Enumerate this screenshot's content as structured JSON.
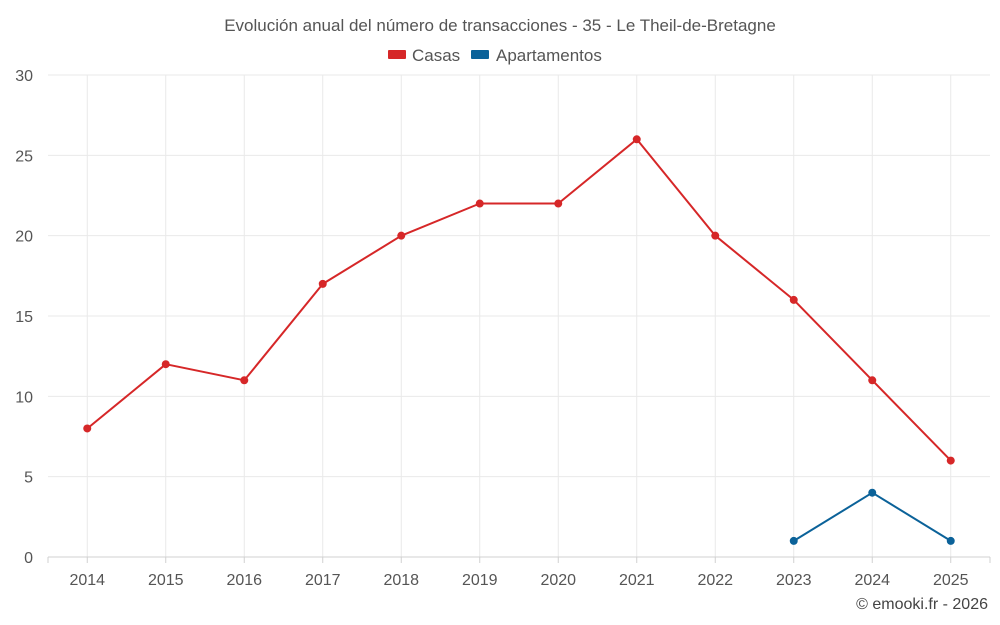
{
  "chart_data": {
    "type": "line",
    "title": "Evolución anual del número de transacciones - 35 - Le Theil-de-Bretagne",
    "xlabel": "",
    "ylabel": "",
    "categories": [
      "2014",
      "2015",
      "2016",
      "2017",
      "2018",
      "2019",
      "2020",
      "2021",
      "2022",
      "2023",
      "2024",
      "2025"
    ],
    "ylim": [
      0,
      30
    ],
    "yticks": [
      0,
      5,
      10,
      15,
      20,
      25,
      30
    ],
    "grid": true,
    "legend_position": "top-center",
    "series": [
      {
        "name": "Casas",
        "color": "#d62728",
        "values": [
          8,
          12,
          11,
          17,
          20,
          22,
          22,
          26,
          20,
          16,
          11,
          6
        ]
      },
      {
        "name": "Apartamentos",
        "color": "#0b6299",
        "values": [
          null,
          null,
          null,
          null,
          null,
          null,
          null,
          null,
          null,
          1,
          4,
          1
        ]
      }
    ]
  },
  "credit": "© emooki.fr - 2026"
}
